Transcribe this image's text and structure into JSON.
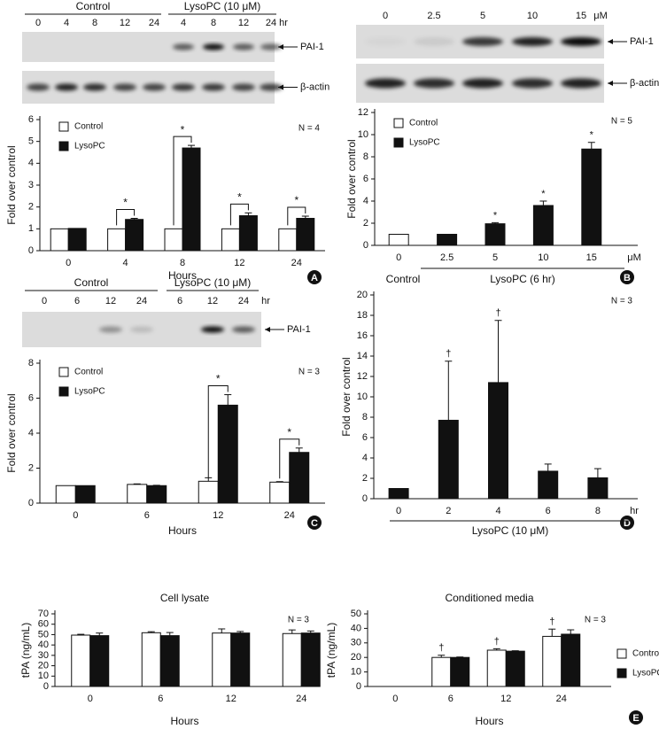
{
  "blots": [
    {
      "panel": "A",
      "group_labels": [
        "Control",
        "LysoPC (10 μM)"
      ],
      "lanes": [
        "0",
        "4",
        "8",
        "12",
        "24",
        "4",
        "8",
        "12",
        "24"
      ],
      "unit": "hr",
      "bands": [
        "PAI-1",
        "β-actin"
      ]
    },
    {
      "panel": "B",
      "lanes": [
        "0",
        "2.5",
        "5",
        "10",
        "15"
      ],
      "unit": "μM",
      "bands": [
        "PAI-1",
        "β-actin"
      ]
    },
    {
      "panel": "C",
      "group_labels": [
        "Control",
        "LysoPC (10 μM)"
      ],
      "lanes": [
        "0",
        "6",
        "12",
        "24",
        "6",
        "12",
        "24"
      ],
      "unit": "hr",
      "bands": [
        "PAI-1"
      ]
    }
  ],
  "chart_data": [
    {
      "type": "bar",
      "panel": "A",
      "note": "N = 4",
      "x_label": "Hours",
      "y_label": "Fold over control",
      "categories": [
        "0",
        "4",
        "8",
        "12",
        "24"
      ],
      "ylim": [
        0,
        6
      ],
      "yticks": [
        0,
        1,
        2,
        3,
        4,
        5,
        6
      ],
      "legend": "upper left",
      "series": [
        {
          "name": "Control",
          "color": "#ffffff",
          "values": [
            1,
            1,
            1,
            1,
            1
          ],
          "errors": [
            0,
            0,
            0,
            0,
            0
          ]
        },
        {
          "name": "LysoPC",
          "color": "#111111",
          "values": [
            1.02,
            1.43,
            4.7,
            1.6,
            1.48
          ],
          "errors": [
            0,
            0.05,
            0.12,
            0.13,
            0.1
          ],
          "markers": [
            null,
            "*",
            "*",
            "*",
            "*"
          ]
        }
      ]
    },
    {
      "type": "bar",
      "panel": "B",
      "note": "N = 5",
      "y_label": "Fold over control",
      "x_unit": "μM",
      "group_labels": [
        "Control",
        "LysoPC (6 hr)"
      ],
      "categories": [
        "0",
        "2.5",
        "5",
        "10",
        "15"
      ],
      "ylim": [
        0,
        12
      ],
      "yticks": [
        0,
        2,
        4,
        6,
        8,
        10,
        12
      ],
      "legend": "upper left",
      "series": [
        {
          "name": "Control",
          "color": "#ffffff",
          "values": [
            1,
            null,
            null,
            null,
            null
          ],
          "errors": [
            0,
            null,
            null,
            null,
            null
          ]
        },
        {
          "name": "LysoPC",
          "color": "#111111",
          "values": [
            null,
            1,
            1.95,
            3.6,
            8.7
          ],
          "errors": [
            null,
            0,
            0.1,
            0.4,
            0.6
          ],
          "markers": [
            null,
            null,
            "*",
            "*",
            "*"
          ]
        }
      ]
    },
    {
      "type": "bar",
      "panel": "C",
      "note": "N = 3",
      "x_label": "Hours",
      "y_label": "Fold over control",
      "categories": [
        "0",
        "6",
        "12",
        "24"
      ],
      "ylim": [
        0,
        8
      ],
      "yticks": [
        0,
        2,
        4,
        6,
        8
      ],
      "legend": "upper left",
      "series": [
        {
          "name": "Control",
          "color": "#ffffff",
          "values": [
            1,
            1.07,
            1.25,
            1.2
          ],
          "errors": [
            0,
            0.03,
            0.2,
            0.03
          ]
        },
        {
          "name": "LysoPC",
          "color": "#111111",
          "values": [
            1,
            1,
            5.6,
            2.9
          ],
          "errors": [
            0,
            0.02,
            0.6,
            0.25
          ],
          "markers": [
            null,
            null,
            "*",
            "*"
          ]
        }
      ]
    },
    {
      "type": "bar",
      "panel": "D",
      "note": "N = 3",
      "y_label": "Fold over control",
      "x_unit": "hr",
      "group_labels": [
        "LysoPC (10 μM)"
      ],
      "categories": [
        "0",
        "2",
        "4",
        "6",
        "8"
      ],
      "ylim": [
        0,
        20
      ],
      "yticks": [
        0,
        2,
        4,
        6,
        8,
        10,
        12,
        14,
        16,
        18,
        20
      ],
      "series": [
        {
          "color": "#111111",
          "values": [
            1,
            7.7,
            11.4,
            2.7,
            2.05
          ],
          "errors": [
            0,
            5.8,
            6.1,
            0.7,
            0.9
          ],
          "markers": [
            null,
            "†",
            "†",
            null,
            null
          ]
        }
      ]
    },
    {
      "type": "bar",
      "title": "Cell lysate",
      "note": "N = 3",
      "x_label": "Hours",
      "y_label": "tPA (ng/mL)",
      "categories": [
        "0",
        "6",
        "12",
        "24"
      ],
      "ylim": [
        0,
        70
      ],
      "yticks": [
        0,
        10,
        20,
        30,
        40,
        50,
        60,
        70
      ],
      "series": [
        {
          "name": "Control",
          "color": "#ffffff",
          "values": [
            49.5,
            51.8,
            51.5,
            51
          ],
          "errors": [
            0.8,
            1,
            4,
            3.5
          ]
        },
        {
          "name": "LysoPC",
          "color": "#111111",
          "values": [
            49,
            49,
            51.5,
            51.5
          ],
          "errors": [
            2.5,
            3,
            1.5,
            2
          ]
        }
      ]
    },
    {
      "type": "bar",
      "panel": "E",
      "title": "Conditioned media",
      "note": "N = 3",
      "x_label": "Hours",
      "y_label": "tPA (ng/mL)",
      "categories": [
        "0",
        "6",
        "12",
        "24"
      ],
      "ylim": [
        0,
        50
      ],
      "yticks": [
        0,
        10,
        20,
        30,
        40,
        50
      ],
      "legend": "outside right",
      "series": [
        {
          "name": "Control",
          "color": "#ffffff",
          "values": [
            null,
            20,
            25,
            34.5
          ],
          "errors": [
            null,
            1.5,
            1,
            5
          ],
          "markers": [
            null,
            "†",
            "†",
            "†"
          ]
        },
        {
          "name": "LysoPC",
          "color": "#111111",
          "values": [
            null,
            20,
            24.3,
            36
          ],
          "errors": [
            null,
            0.3,
            0.3,
            3
          ]
        }
      ]
    }
  ]
}
